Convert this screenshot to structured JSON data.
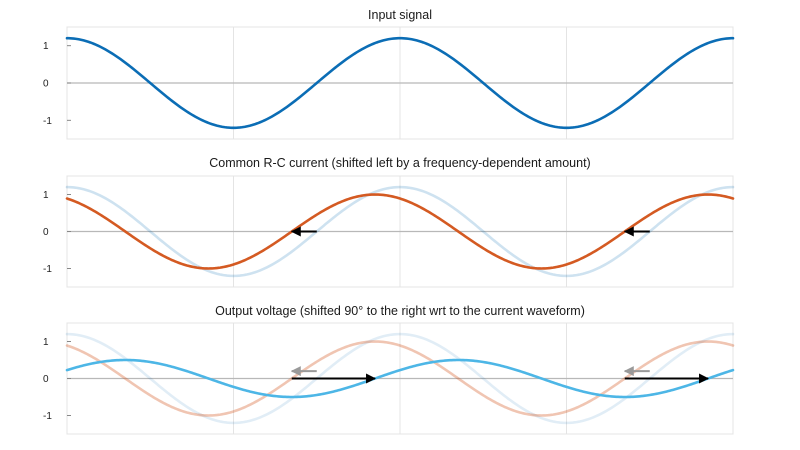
{
  "chart_data": [
    {
      "type": "line",
      "title": "Input signal",
      "xlim": [
        0,
        8.0
      ],
      "ylim": [
        -1.5,
        1.5
      ],
      "yticks": [
        1,
        0,
        -1
      ],
      "ytick_labels": [
        "1",
        "0",
        "-1"
      ],
      "grid": true,
      "series": [
        {
          "key": "input",
          "color": "#0b6db5",
          "opacity": 1,
          "amplitude": 1.2,
          "period": 4,
          "phase_shift": 0
        }
      ],
      "arrows": []
    },
    {
      "type": "line",
      "title": "Common R-C current (shifted left by a frequency-dependent amount)",
      "xlim": [
        0,
        8.0
      ],
      "ylim": [
        -1.5,
        1.5
      ],
      "yticks": [
        1,
        0,
        -1
      ],
      "ytick_labels": [
        "1",
        "0",
        "-1"
      ],
      "grid": true,
      "series": [
        {
          "key": "input-faded",
          "color": "#0b6db5",
          "opacity": 0.2,
          "amplitude": 1.2,
          "period": 4,
          "phase_shift": 0
        },
        {
          "key": "current",
          "color": "#d45a22",
          "opacity": 1,
          "amplitude": 1.0,
          "period": 4,
          "phase_shift": 0.3
        }
      ],
      "arrows": [
        {
          "x1": 3.0,
          "y1": 0,
          "x2": 2.7,
          "y2": 0,
          "color": "#000000"
        },
        {
          "x1": 7.0,
          "y1": 0,
          "x2": 6.7,
          "y2": 0,
          "color": "#000000"
        }
      ]
    },
    {
      "type": "line",
      "title": "Output voltage (shifted 90° to the right wrt to the current waveform)",
      "xlim": [
        0,
        8.0
      ],
      "ylim": [
        -1.5,
        1.5
      ],
      "yticks": [
        1,
        0,
        -1
      ],
      "ytick_labels": [
        "1",
        "0",
        "-1"
      ],
      "grid": true,
      "series": [
        {
          "key": "input-faded",
          "color": "#0b6db5",
          "opacity": 0.12,
          "amplitude": 1.2,
          "period": 4,
          "phase_shift": 0
        },
        {
          "key": "current-faded",
          "color": "#d45a22",
          "opacity": 0.35,
          "amplitude": 1.0,
          "period": 4,
          "phase_shift": 0.3
        },
        {
          "key": "output",
          "color": "#4db6e6",
          "opacity": 1,
          "amplitude": 0.5,
          "period": 4,
          "phase_shift": -0.7
        }
      ],
      "arrows": [
        {
          "x1": 3.0,
          "y1": 0.2,
          "x2": 2.7,
          "y2": 0.2,
          "color": "#9a9a9a"
        },
        {
          "x1": 2.7,
          "y1": 0,
          "x2": 3.7,
          "y2": 0,
          "color": "#000000"
        },
        {
          "x1": 7.0,
          "y1": 0.2,
          "x2": 6.7,
          "y2": 0.2,
          "color": "#9a9a9a"
        },
        {
          "x1": 6.7,
          "y1": 0,
          "x2": 7.7,
          "y2": 0,
          "color": "#000000"
        }
      ]
    }
  ]
}
